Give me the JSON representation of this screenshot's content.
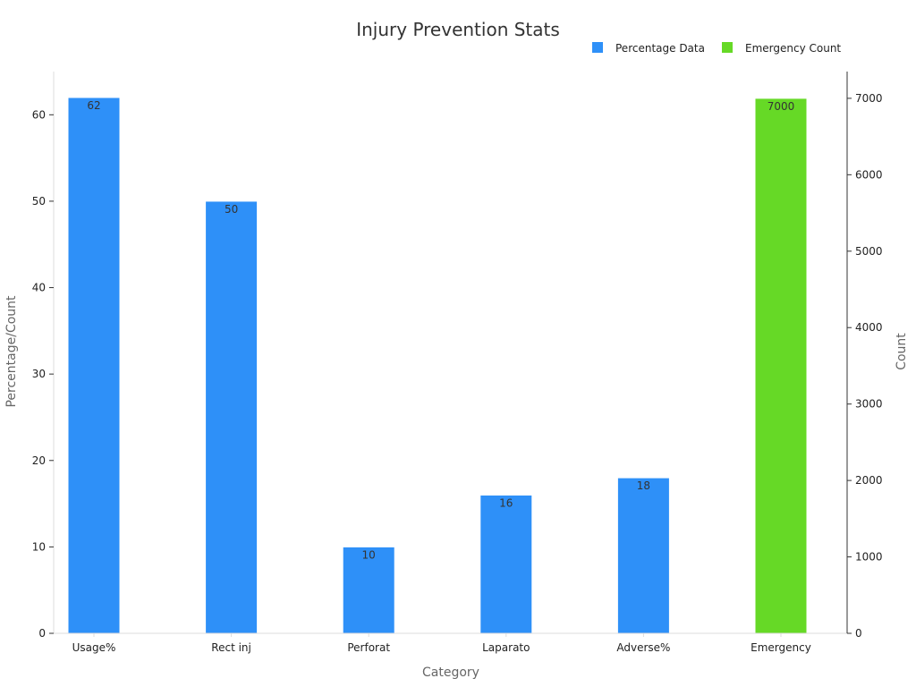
{
  "chart_data": {
    "type": "bar",
    "title": "Injury Prevention Stats",
    "xlabel": "Category",
    "ylabel": "Percentage/Count",
    "y2label": "Count",
    "categories": [
      "Usage%",
      "Rect inj",
      "Perforat",
      "Laparato",
      "Adverse%",
      "Emergency"
    ],
    "series": [
      {
        "name": "Percentage Data",
        "axis": "left",
        "color": "#2e90f8",
        "values": [
          62,
          50,
          10,
          16,
          18,
          null
        ]
      },
      {
        "name": "Emergency Count",
        "axis": "right",
        "color": "#66d926",
        "values": [
          null,
          null,
          null,
          null,
          null,
          7000
        ]
      }
    ],
    "ylim": [
      0,
      65
    ],
    "y2lim": [
      0,
      7350
    ],
    "yticks": [
      "0",
      "10",
      "20",
      "30",
      "40",
      "50",
      "60"
    ],
    "y2ticks": [
      "0",
      "1000",
      "2000",
      "3000",
      "4000",
      "5000",
      "6000",
      "7000"
    ],
    "legend_position": "top-right",
    "grid": false
  }
}
